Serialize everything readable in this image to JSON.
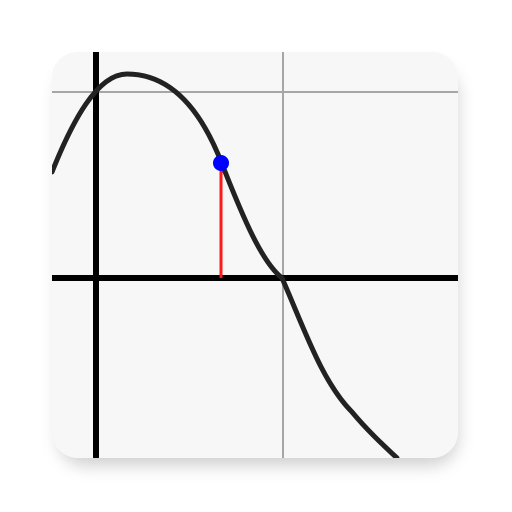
{
  "icon": {
    "name": "sine-function-graph-icon",
    "background": "#f7f7f7",
    "colors": {
      "grid": "#a6a6a6",
      "axis": "#000000",
      "curve": "#222222",
      "marker_line": "#ff1a1a",
      "point": "#0000ff"
    }
  }
}
